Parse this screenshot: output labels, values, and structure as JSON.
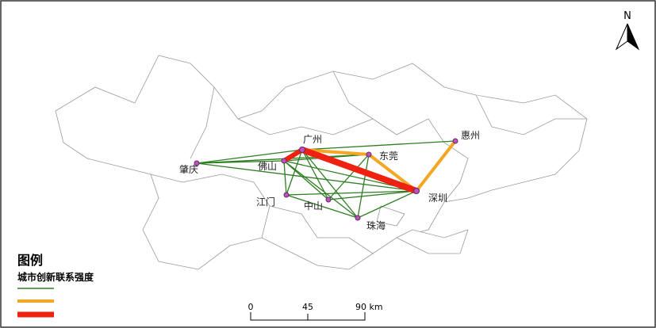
{
  "north": "N",
  "nodes": [
    {
      "label": "广州"
    },
    {
      "label": "东莞"
    },
    {
      "label": "惠州"
    },
    {
      "label": "深圳"
    },
    {
      "label": "佛山"
    },
    {
      "label": "肇庆"
    },
    {
      "label": "江门"
    },
    {
      "label": "中山"
    },
    {
      "label": "珠海"
    }
  ],
  "legend": {
    "title": "图例",
    "subtitle": "城市创新联系强度"
  },
  "scale": [
    "0",
    "45",
    "90 km"
  ]
}
